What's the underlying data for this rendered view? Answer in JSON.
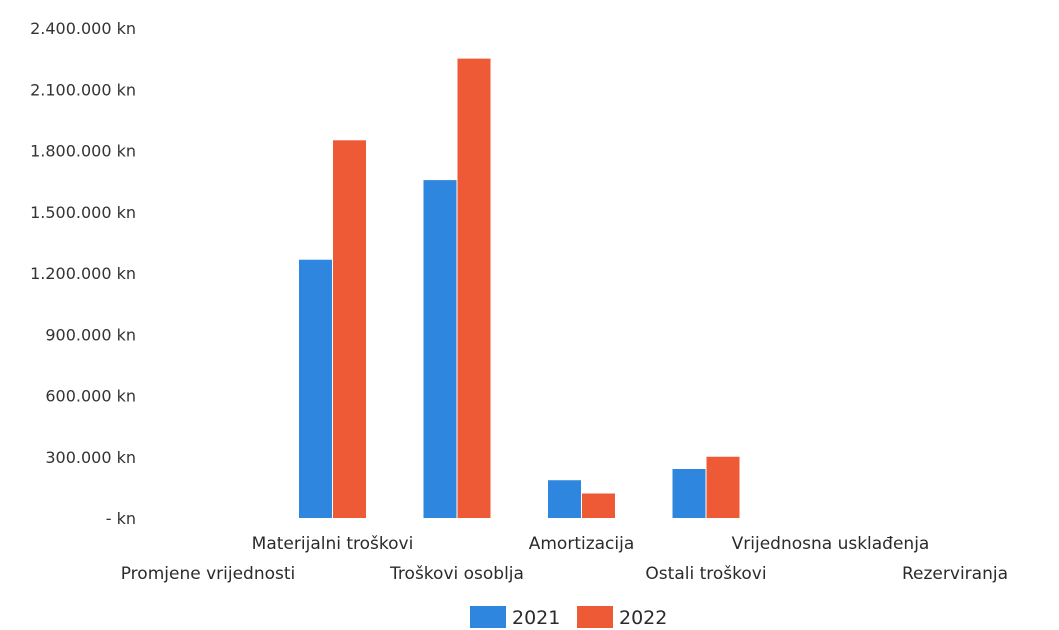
{
  "chart_data": {
    "type": "bar",
    "title": "",
    "xlabel": "",
    "ylabel": "",
    "ylim": [
      0,
      2400000
    ],
    "y_ticks": [
      0,
      300000,
      600000,
      900000,
      1200000,
      1500000,
      1800000,
      2100000,
      2400000
    ],
    "y_tick_labels": [
      "- kn",
      "300.000 kn",
      "600.000 kn",
      "900.000 kn",
      "1.200.000 kn",
      "1.500.000 kn",
      "1.800.000 kn",
      "2.100.000 kn",
      "2.400.000 kn"
    ],
    "categories": [
      "Promjene vrijednosti",
      "Materijalni troškovi",
      "Troškovi osoblja",
      "Amortizacija",
      "Ostali troškovi",
      "Vrijednosna usklađenja",
      "Rezerviranja"
    ],
    "series": [
      {
        "name": "2021",
        "color": "#2e86de",
        "values": [
          0,
          1265000,
          1655000,
          185000,
          240000,
          0,
          0
        ]
      },
      {
        "name": "2022",
        "color": "#ee5a36",
        "values": [
          0,
          1850000,
          2250000,
          120000,
          300000,
          0,
          0
        ]
      }
    ],
    "grid": false,
    "legend_position": "bottom"
  }
}
